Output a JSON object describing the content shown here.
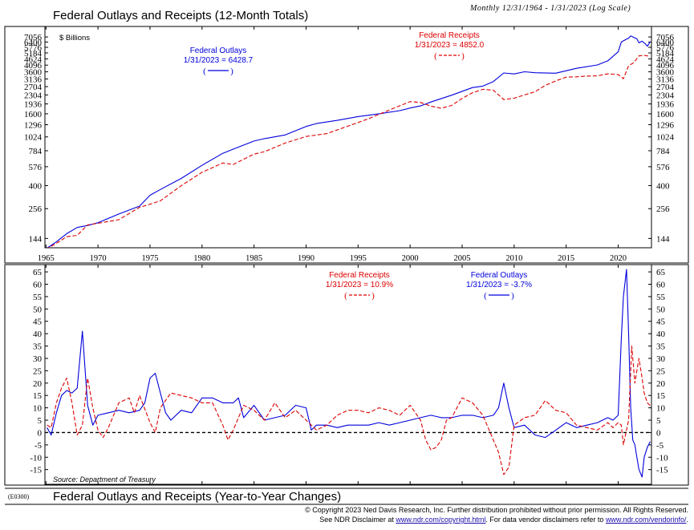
{
  "header": {
    "title": "Federal Outlays and Receipts (12-Month Totals)",
    "subtitle": "Monthly 12/31/1964 - 1/31/2023 (Log Scale)"
  },
  "footer": {
    "code": "(E0300)",
    "title": "Federal Outlays and Receipts (Year-to-Year Changes)",
    "copyright": "© Copyright 2023 Ned Davis Research, Inc.  Further distribution prohibited without prior permission.  All Rights Reserved.",
    "disclaimer_prefix": "See NDR Disclaimer at ",
    "disclaimer_link1": "www.ndr.com/copyright.html",
    "disclaimer_mid": ". For data vendor disclaimers refer to ",
    "disclaimer_link2": "www.ndr.com/vendorinfo/",
    "disclaimer_suffix": "."
  },
  "colors": {
    "outlays": "#0000dd",
    "receipts": "#dd0000",
    "zero_line": "#000000"
  },
  "chart_data": [
    {
      "type": "line",
      "scale": "log",
      "unit_label": "$ Billions",
      "ylim": [
        130,
        8000
      ],
      "yticks": [
        144,
        256,
        400,
        576,
        784,
        1024,
        1296,
        1600,
        1936,
        2304,
        2704,
        3136,
        3600,
        4096,
        4624,
        5184,
        5776,
        6400,
        7056
      ],
      "xlim": [
        1964.9,
        2023.2
      ],
      "xticks": [
        1965,
        1970,
        1975,
        1980,
        1985,
        1990,
        1995,
        2000,
        2005,
        2010,
        2015,
        2020
      ],
      "annotations": [
        {
          "series": "Federal Outlays",
          "line1": "Federal Outlays",
          "line2": "1/31/2023 = 6428.7"
        },
        {
          "series": "Federal Receipts",
          "line1": "Federal Receipts",
          "line2": "1/31/2023 = 4852.0"
        }
      ],
      "series": [
        {
          "name": "Federal Outlays",
          "style": "solid",
          "color": "#0000dd",
          "x": [
            1965,
            1966,
            1967,
            1968,
            1969,
            1970,
            1972,
            1974,
            1975,
            1976,
            1978,
            1980,
            1982,
            1983,
            1985,
            1986,
            1988,
            1990,
            1991,
            1993,
            1995,
            1997,
            1999,
            2000,
            2001,
            2002,
            2004,
            2006,
            2007,
            2008,
            2009,
            2010,
            2011,
            2012,
            2014,
            2016,
            2018,
            2019,
            2020,
            2020.3,
            2020.7,
            2021,
            2021.2,
            2021.5,
            2021.8,
            2022,
            2022.3,
            2022.6,
            2022.8,
            2023.08
          ],
          "y": [
            118,
            135,
            158,
            178,
            185,
            195,
            231,
            269,
            332,
            371,
            459,
            591,
            746,
            808,
            946,
            990,
            1064,
            1253,
            1324,
            1409,
            1516,
            1601,
            1701,
            1789,
            1863,
            2011,
            2293,
            2655,
            2729,
            2983,
            3518,
            3457,
            3603,
            3537,
            3506,
            3853,
            4108,
            4447,
            5300,
            6400,
            6700,
            6900,
            7200,
            7000,
            6800,
            6300,
            6500,
            6200,
            5900,
            6428.7
          ]
        },
        {
          "name": "Federal Receipts",
          "style": "dashed",
          "color": "#dd0000",
          "x": [
            1965,
            1966,
            1967,
            1968,
            1969,
            1970,
            1972,
            1974,
            1975,
            1976,
            1978,
            1980,
            1982,
            1983,
            1985,
            1986,
            1988,
            1990,
            1992,
            1994,
            1996,
            1998,
            2000,
            2001,
            2002,
            2003,
            2004,
            2005,
            2006,
            2007,
            2008,
            2009,
            2010,
            2011,
            2012,
            2013,
            2014,
            2015,
            2016,
            2017,
            2018,
            2019,
            2020,
            2020.5,
            2021,
            2021.5,
            2022,
            2022.5,
            2023.08
          ],
          "y": [
            117,
            131,
            149,
            153,
            187,
            193,
            207,
            263,
            279,
            298,
            399,
            517,
            618,
            601,
            734,
            769,
            909,
            1032,
            1091,
            1258,
            1453,
            1722,
            2025,
            1991,
            1853,
            1782,
            1880,
            2154,
            2407,
            2568,
            2524,
            2105,
            2163,
            2303,
            2450,
            2775,
            3021,
            3250,
            3268,
            3316,
            3330,
            3463,
            3420,
            3150,
            4047,
            4300,
            4900,
            4950,
            4852.0
          ]
        }
      ]
    },
    {
      "type": "line",
      "unit": "percent",
      "ylim": [
        -19,
        66
      ],
      "yticks": [
        -15,
        -10,
        -5,
        0,
        5,
        10,
        15,
        20,
        25,
        30,
        35,
        40,
        45,
        50,
        55,
        60,
        65
      ],
      "xlim": [
        1964.9,
        2023.2
      ],
      "source": "Source: Department of Treasury",
      "annotations": [
        {
          "series": "Federal Receipts",
          "line1": "Federal Receipts",
          "line2": "1/31/2023 = 10.9%"
        },
        {
          "series": "Federal Outlays",
          "line1": "Federal Outlays",
          "line2": "1/31/2023 = -3.7%"
        }
      ],
      "series": [
        {
          "name": "Federal Outlays",
          "style": "solid",
          "color": "#0000dd",
          "x": [
            1965.1,
            1965.5,
            1966,
            1966.5,
            1967,
            1967.5,
            1968,
            1968.5,
            1969,
            1969.5,
            1970,
            1971,
            1972,
            1973,
            1974,
            1974.5,
            1975,
            1975.5,
            1976,
            1976.5,
            1977,
            1978,
            1979,
            1980,
            1981,
            1982,
            1983,
            1983.5,
            1984,
            1985,
            1986,
            1987,
            1988,
            1989,
            1990,
            1990.5,
            1991,
            1992,
            1993,
            1994,
            1995,
            1996,
            1997,
            1998,
            1999,
            2000,
            2001,
            2002,
            2003,
            2004,
            2005,
            2006,
            2007,
            2008,
            2008.5,
            2009,
            2009.5,
            2010,
            2011,
            2012,
            2013,
            2014,
            2015,
            2016,
            2017,
            2018,
            2019,
            2019.5,
            2020,
            2020.3,
            2020.5,
            2020.8,
            2021,
            2021.2,
            2021.4,
            2021.6,
            2021.8,
            2022,
            2022.3,
            2022.5,
            2022.8,
            2023.08
          ],
          "y": [
            2,
            -1,
            8,
            15,
            17,
            16,
            18,
            41,
            11,
            3,
            7,
            8,
            9,
            8,
            9,
            12,
            22,
            24,
            16,
            8,
            5,
            9,
            8,
            14,
            14,
            12,
            12,
            14,
            6,
            11,
            5,
            6,
            7,
            11,
            10,
            1,
            3,
            3,
            2,
            3,
            3,
            3,
            4,
            3,
            4,
            5,
            6,
            7,
            6,
            6,
            7,
            7,
            6,
            7,
            10,
            20,
            10,
            2,
            3,
            -1,
            -2,
            1,
            4,
            2,
            3,
            4,
            6,
            5,
            7,
            38,
            55,
            66,
            40,
            10,
            -3,
            -5,
            -10,
            -15,
            -18,
            -10,
            -6,
            -3.7
          ]
        },
        {
          "name": "Federal Receipts",
          "style": "dashed",
          "color": "#dd0000",
          "x": [
            1965.1,
            1965.5,
            1966,
            1966.5,
            1967,
            1967.5,
            1968,
            1968.5,
            1969,
            1969.5,
            1970,
            1970.5,
            1971,
            1972,
            1973,
            1973.5,
            1974,
            1975,
            1975.5,
            1976,
            1977,
            1978,
            1979,
            1980,
            1981,
            1982,
            1982.5,
            1983,
            1984,
            1985,
            1986,
            1987,
            1988,
            1989,
            1990,
            1991,
            1992,
            1993,
            1994,
            1995,
            1996,
            1997,
            1998,
            1999,
            2000,
            2001,
            2001.5,
            2002,
            2002.5,
            2003,
            2003.5,
            2004,
            2005,
            2006,
            2007,
            2008,
            2008.5,
            2009,
            2009.5,
            2010,
            2011,
            2012,
            2013,
            2014,
            2015,
            2016,
            2017,
            2018,
            2019,
            2019.5,
            2020,
            2020.3,
            2020.5,
            2020.8,
            2021,
            2021.3,
            2021.6,
            2021.8,
            2022,
            2022.3,
            2022.5,
            2022.8,
            2023.08
          ],
          "y": [
            3,
            2,
            12,
            18,
            22,
            12,
            -1,
            3,
            22,
            10,
            1,
            -2,
            2,
            12,
            14,
            8,
            15,
            4,
            0,
            10,
            16,
            15,
            14,
            12,
            12,
            3,
            -3,
            1,
            11,
            9,
            5,
            12,
            6,
            9,
            5,
            1,
            3,
            7,
            9,
            9,
            8,
            10,
            9,
            7,
            11,
            5,
            -3,
            -7,
            -6,
            -3,
            5,
            6,
            14,
            12,
            7,
            -3,
            -8,
            -17,
            -14,
            3,
            6,
            7,
            13,
            9,
            8,
            3,
            2,
            1,
            4,
            2,
            4,
            3,
            -5,
            1,
            5,
            35,
            20,
            25,
            30,
            22,
            16,
            12,
            10.9
          ]
        }
      ]
    }
  ]
}
